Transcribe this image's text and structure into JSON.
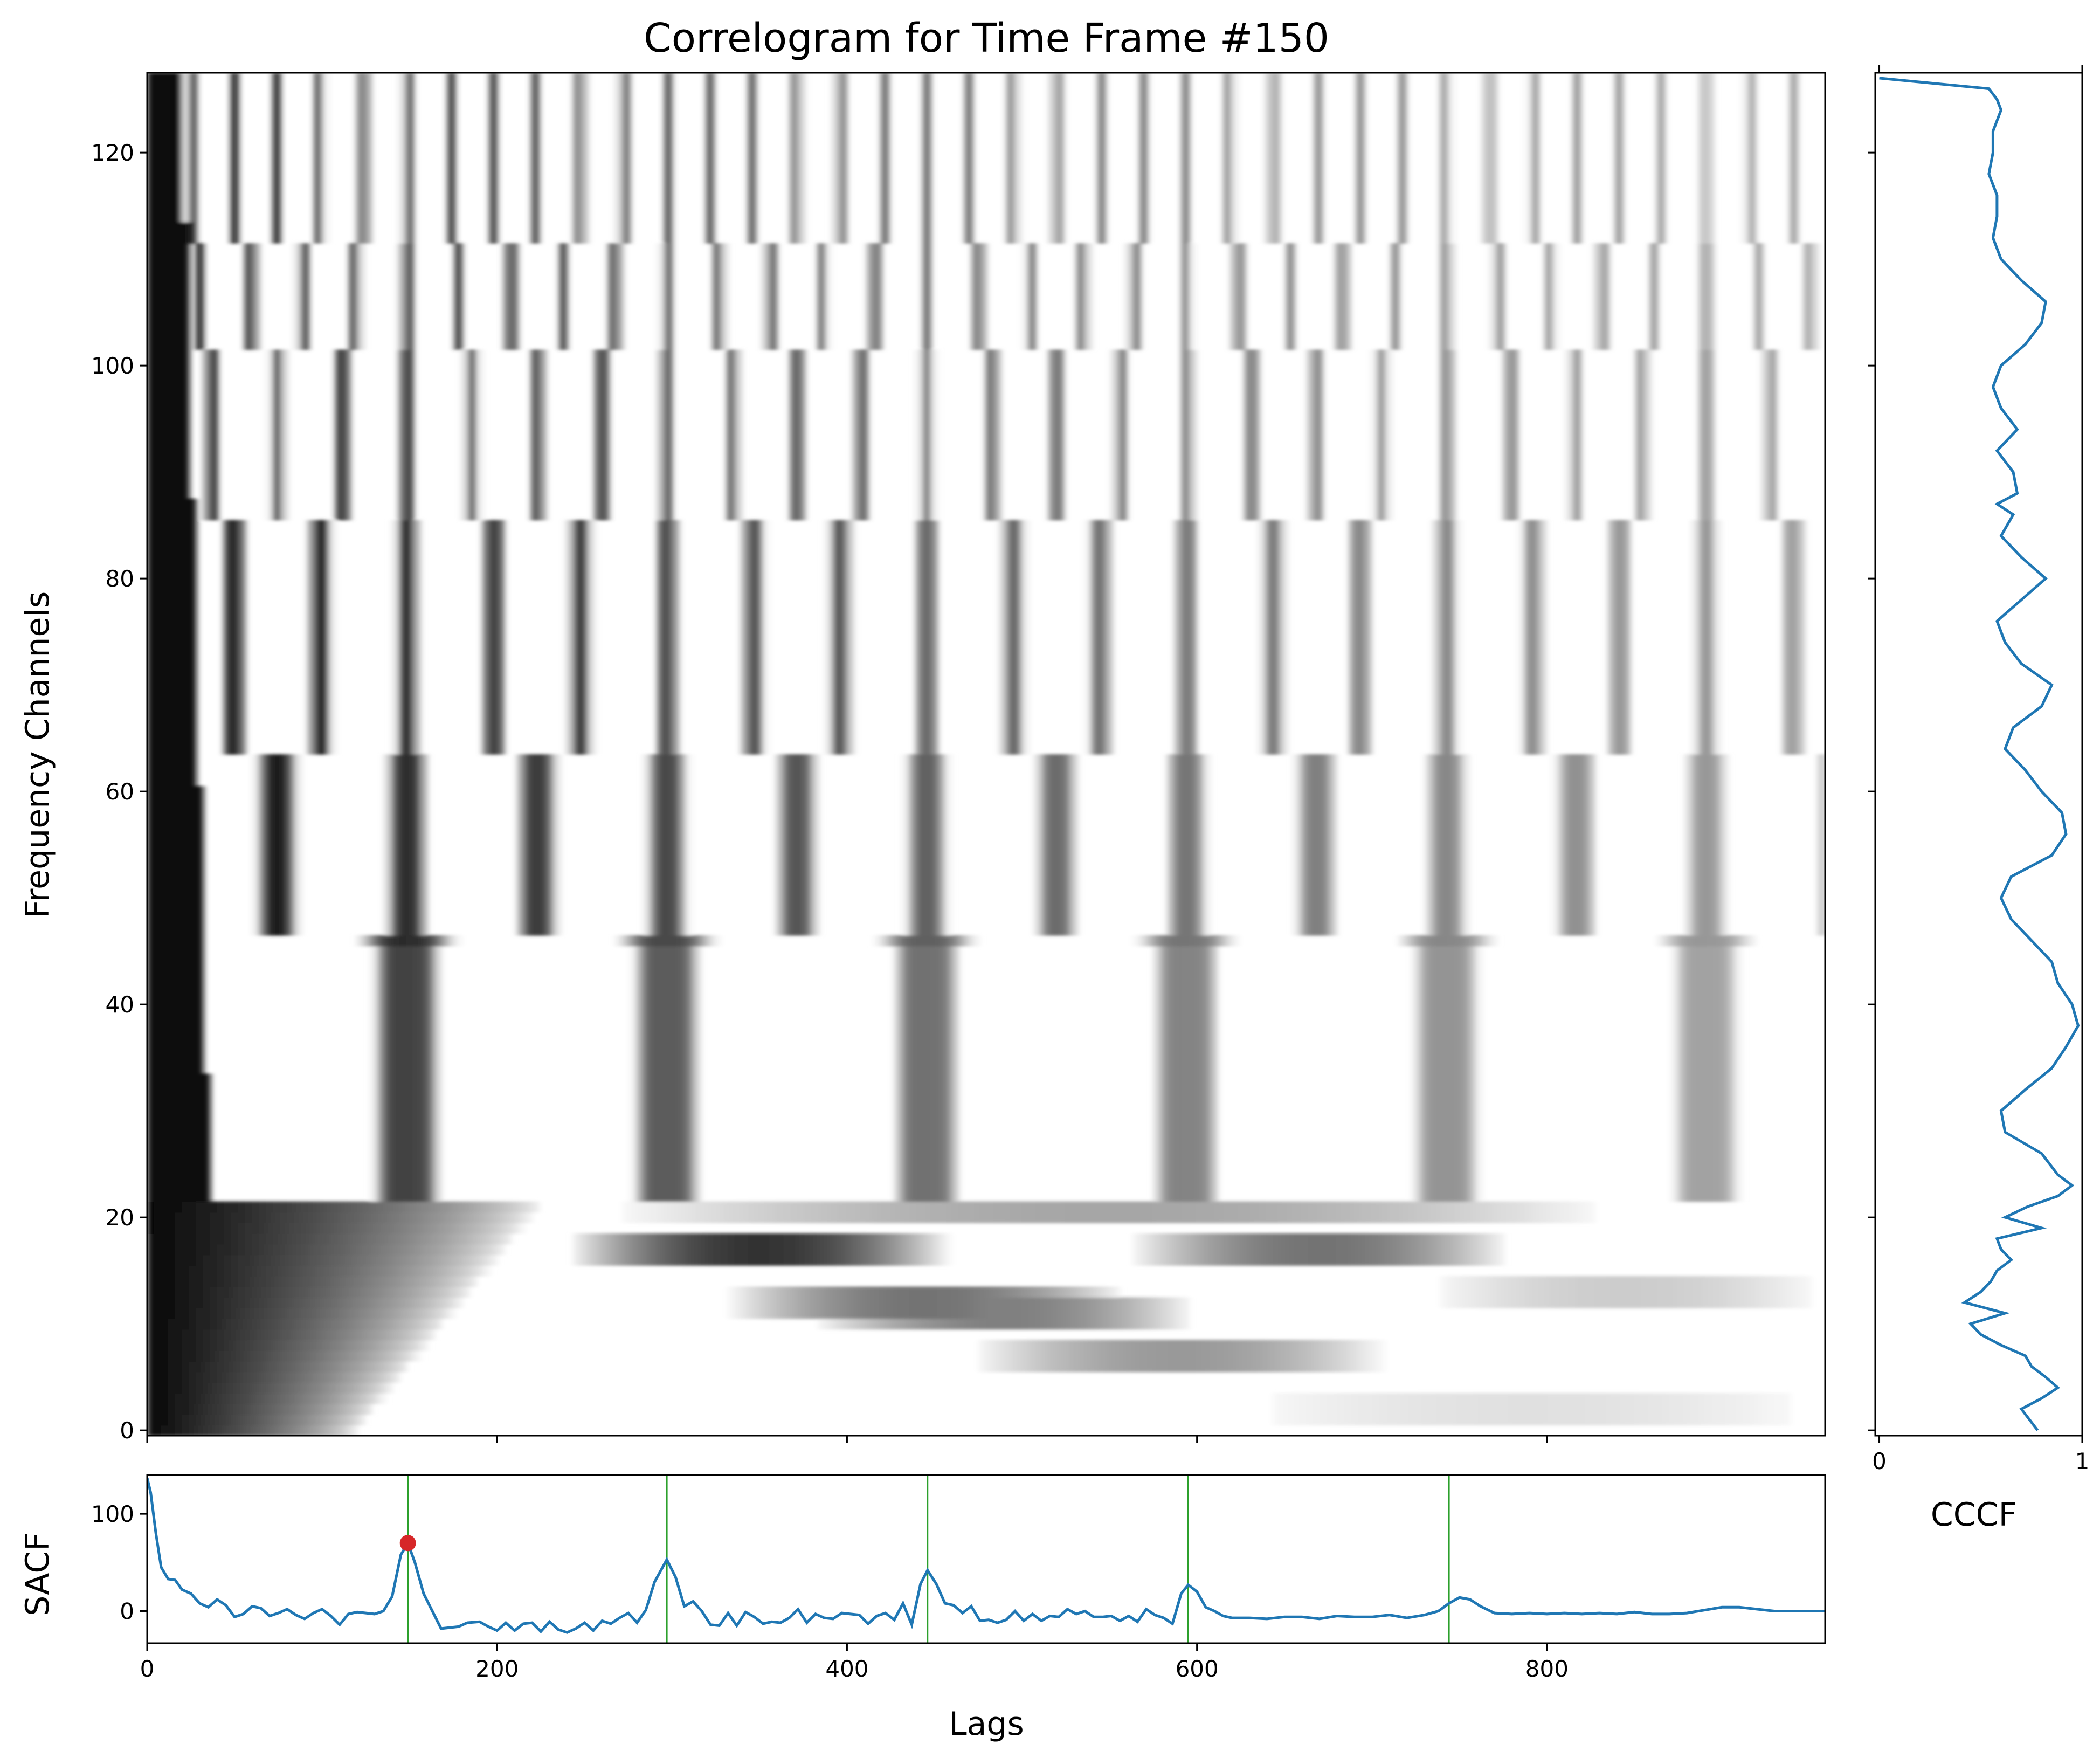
{
  "chart_data": [
    {
      "id": "correlogram",
      "type": "heatmap",
      "title": "Correlogram for Time Frame #150",
      "xlabel": "",
      "ylabel": "Frequency Channels",
      "xlim": [
        0,
        959
      ],
      "ylim": [
        -0.5,
        127.5
      ],
      "yticks": [
        0,
        20,
        40,
        60,
        80,
        100,
        120
      ],
      "xticks": [
        0,
        200,
        400,
        600,
        800
      ],
      "colormap": "white-to-black",
      "pitch_period_lags": 148.5,
      "value_range": [
        0,
        1
      ]
    },
    {
      "id": "sacf",
      "type": "line",
      "title": "",
      "xlabel": "Lags",
      "ylabel": "SACF",
      "xlim": [
        0,
        959
      ],
      "ylim": [
        -33,
        140
      ],
      "xticks": [
        0,
        200,
        400,
        600,
        800
      ],
      "yticks": [
        0,
        100
      ],
      "line_color": "#1f77b4",
      "peak_marker": {
        "x": 149,
        "y": 70,
        "color": "#d62728"
      },
      "vertical_lines": [
        149,
        297,
        446,
        595,
        744
      ],
      "vertical_line_color": "#2ca02c",
      "series": [
        {
          "x": [
            0,
            2,
            5,
            8,
            12,
            16,
            20,
            25,
            30,
            35,
            40,
            45,
            50,
            55,
            60,
            65,
            70,
            75,
            80,
            85,
            90,
            95,
            100,
            105,
            110,
            115,
            120,
            125,
            130,
            135,
            140,
            145,
            149,
            153,
            158,
            163,
            168,
            173,
            178,
            183,
            190,
            195,
            200,
            205,
            210,
            215,
            220,
            225,
            230,
            235,
            240,
            245,
            250,
            255,
            260,
            265,
            270,
            275,
            280,
            285,
            290,
            297,
            302,
            307,
            312,
            317,
            322,
            327,
            332,
            337,
            342,
            347,
            352,
            357,
            362,
            367,
            372,
            377,
            382,
            387,
            392,
            397,
            402,
            407,
            412,
            417,
            422,
            427,
            432,
            437,
            442,
            446,
            451,
            456,
            461,
            466,
            471,
            476,
            481,
            486,
            491,
            496,
            501,
            506,
            511,
            516,
            521,
            526,
            531,
            536,
            541,
            546,
            551,
            556,
            561,
            566,
            571,
            576,
            581,
            586,
            591,
            595,
            600,
            605,
            610,
            615,
            620,
            630,
            640,
            650,
            660,
            670,
            680,
            690,
            700,
            710,
            720,
            730,
            738,
            744,
            750,
            756,
            762,
            770,
            780,
            790,
            800,
            810,
            820,
            830,
            840,
            850,
            860,
            870,
            880,
            890,
            900,
            910,
            920,
            930,
            940,
            950,
            959
          ],
          "y": [
            137,
            122,
            80,
            45,
            33,
            32,
            22,
            18,
            8,
            4,
            12,
            6,
            -6,
            -3,
            5,
            3,
            -5,
            -2,
            2,
            -4,
            -8,
            -2,
            2,
            -5,
            -14,
            -3,
            -1,
            -2,
            -3,
            0,
            15,
            58,
            70,
            50,
            18,
            0,
            -18,
            -17,
            -16,
            -12,
            -11,
            -16,
            -20,
            -12,
            -20,
            -13,
            -12,
            -21,
            -11,
            -19,
            -22,
            -18,
            -12,
            -20,
            -10,
            -13,
            -7,
            -2,
            -12,
            1,
            30,
            53,
            35,
            5,
            10,
            0,
            -14,
            -15,
            -2,
            -15,
            -1,
            -6,
            -13,
            -11,
            -12,
            -7,
            2,
            -12,
            -3,
            -7,
            -8,
            -2,
            -3,
            -4,
            -13,
            -5,
            -2,
            -9,
            8,
            -14,
            28,
            42,
            28,
            8,
            6,
            -2,
            5,
            -10,
            -9,
            -12,
            -9,
            0,
            -10,
            -3,
            -10,
            -5,
            -6,
            2,
            -3,
            0,
            -6,
            -6,
            -5,
            -10,
            -5,
            -11,
            2,
            -4,
            -7,
            -13,
            18,
            27,
            20,
            4,
            0,
            -5,
            -7,
            -7,
            -8,
            -6,
            -6,
            -8,
            -5,
            -6,
            -6,
            -4,
            -7,
            -4,
            0,
            8,
            14,
            12,
            5,
            -2,
            -3,
            -2,
            -3,
            -2,
            -3,
            -2,
            -3,
            -1,
            -3,
            -3,
            -2,
            1,
            4,
            4,
            2,
            0,
            0,
            0,
            0
          ]
        }
      ]
    },
    {
      "id": "cccf",
      "type": "line",
      "title": "",
      "xlabel": "CCCF",
      "ylabel": "",
      "xlim": [
        -0.02,
        1.0
      ],
      "ylim": [
        -0.5,
        127.5
      ],
      "xticks": [
        0,
        1
      ],
      "line_color": "#1f77b4",
      "series": [
        {
          "y": [
            0,
            2,
            3,
            4,
            5,
            6,
            7,
            8,
            9,
            10,
            11,
            12,
            13,
            14,
            15,
            16,
            17,
            18,
            19,
            20,
            21,
            22,
            23,
            24,
            26,
            28,
            30,
            32,
            34,
            36,
            38,
            40,
            42,
            44,
            46,
            48,
            50,
            52,
            54,
            56,
            58,
            60,
            62,
            64,
            66,
            68,
            70,
            72,
            74,
            76,
            78,
            80,
            82,
            84,
            86,
            87,
            88,
            90,
            92,
            94,
            96,
            98,
            100,
            102,
            104,
            106,
            108,
            110,
            112,
            114,
            116,
            118,
            120,
            122,
            124,
            125,
            126,
            127
          ],
          "x": [
            0.78,
            0.7,
            0.8,
            0.88,
            0.82,
            0.75,
            0.72,
            0.6,
            0.5,
            0.45,
            0.62,
            0.42,
            0.5,
            0.55,
            0.58,
            0.65,
            0.6,
            0.58,
            0.8,
            0.62,
            0.73,
            0.88,
            0.95,
            0.88,
            0.8,
            0.62,
            0.6,
            0.72,
            0.85,
            0.92,
            0.98,
            0.95,
            0.88,
            0.85,
            0.75,
            0.65,
            0.6,
            0.65,
            0.85,
            0.92,
            0.9,
            0.8,
            0.72,
            0.62,
            0.66,
            0.8,
            0.85,
            0.7,
            0.62,
            0.58,
            0.7,
            0.82,
            0.7,
            0.6,
            0.66,
            0.58,
            0.68,
            0.66,
            0.58,
            0.68,
            0.6,
            0.56,
            0.6,
            0.72,
            0.8,
            0.82,
            0.7,
            0.6,
            0.56,
            0.58,
            0.58,
            0.54,
            0.56,
            0.56,
            0.6,
            0.58,
            0.54,
            0.0
          ]
        }
      ]
    }
  ]
}
